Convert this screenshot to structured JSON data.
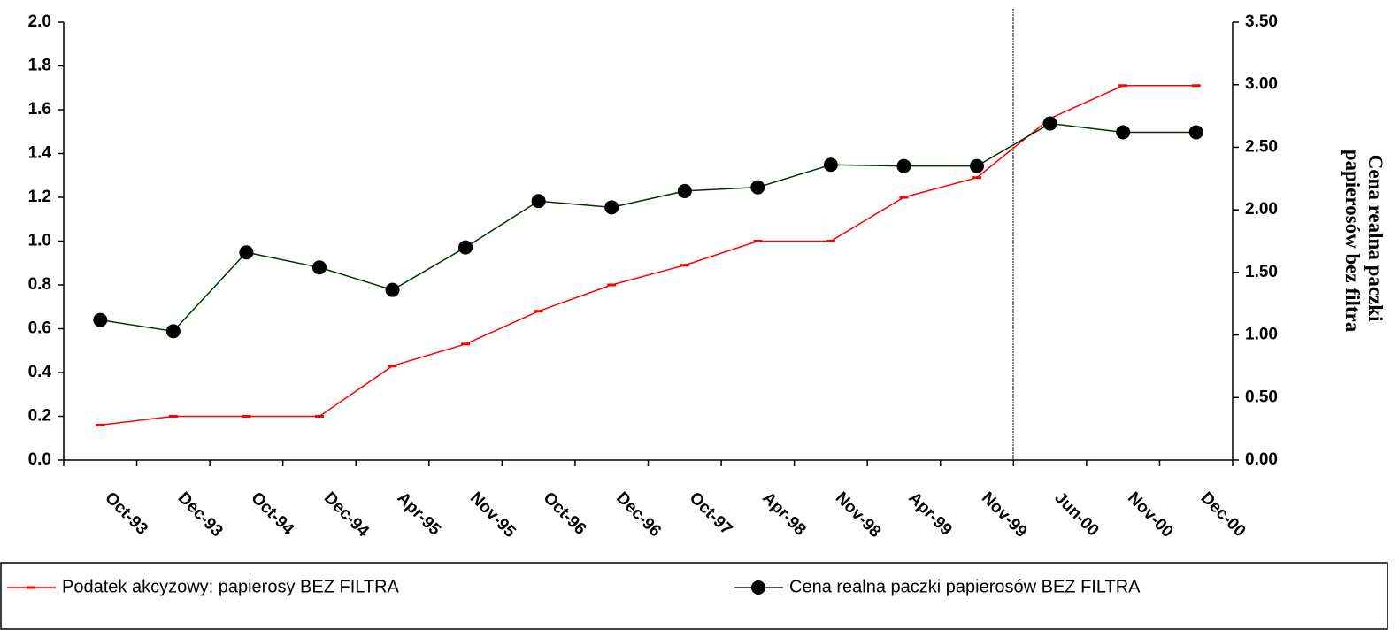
{
  "chart_data": {
    "type": "line",
    "y2label": "Cena realna paczki papierosów bez filtra",
    "categories": [
      "Oct-93",
      "Dec-93",
      "Oct-94",
      "Dec-94",
      "Apr-95",
      "Nov-95",
      "Oct-96",
      "Dec-96",
      "Oct-97",
      "Apr-98",
      "Nov-98",
      "Apr-99",
      "Nov-99",
      "Jun-00",
      "Nov-00",
      "Dec-00"
    ],
    "series": [
      {
        "name": "Podatek akcyzowy: papierosy BEZ FILTRA",
        "color": "#ff0000",
        "marker": "dash",
        "values": [
          0.16,
          0.2,
          0.2,
          0.2,
          0.43,
          0.53,
          0.68,
          0.8,
          0.89,
          1.0,
          1.0,
          1.2,
          1.29,
          1.56,
          1.71,
          1.71
        ]
      },
      {
        "name": "Cena realna paczki papierosów BEZ FILTRA",
        "color": "#003300",
        "marker": "circle",
        "axis": "y2",
        "values": [
          1.12,
          1.03,
          1.66,
          1.54,
          1.36,
          1.7,
          2.07,
          2.02,
          2.15,
          2.18,
          2.36,
          2.35,
          2.35,
          2.69,
          2.62,
          2.62
        ]
      }
    ],
    "ylim": [
      0,
      2
    ],
    "yticks": [
      {
        "value": 0,
        "label": "0.0"
      },
      0.2,
      0.4,
      0.6,
      0.8,
      {
        "value": 1,
        "label": "1.0"
      },
      1.2,
      1.4,
      1.6,
      1.8,
      {
        "value": 2,
        "label": "2.0"
      }
    ],
    "y2lim": [
      0,
      3.5
    ],
    "y2ticks": [
      {
        "value": 0,
        "label": "0.00"
      },
      {
        "value": 0.5,
        "label": "0.50"
      },
      {
        "value": 1,
        "label": "1.00"
      },
      {
        "value": 1.5,
        "label": "1.50"
      },
      {
        "value": 2,
        "label": "2.00"
      },
      {
        "value": 2.5,
        "label": "2.50"
      },
      {
        "value": 3,
        "label": "3.00"
      },
      {
        "value": 3.5,
        "label": "3.50"
      }
    ],
    "legend": "bottom"
  }
}
